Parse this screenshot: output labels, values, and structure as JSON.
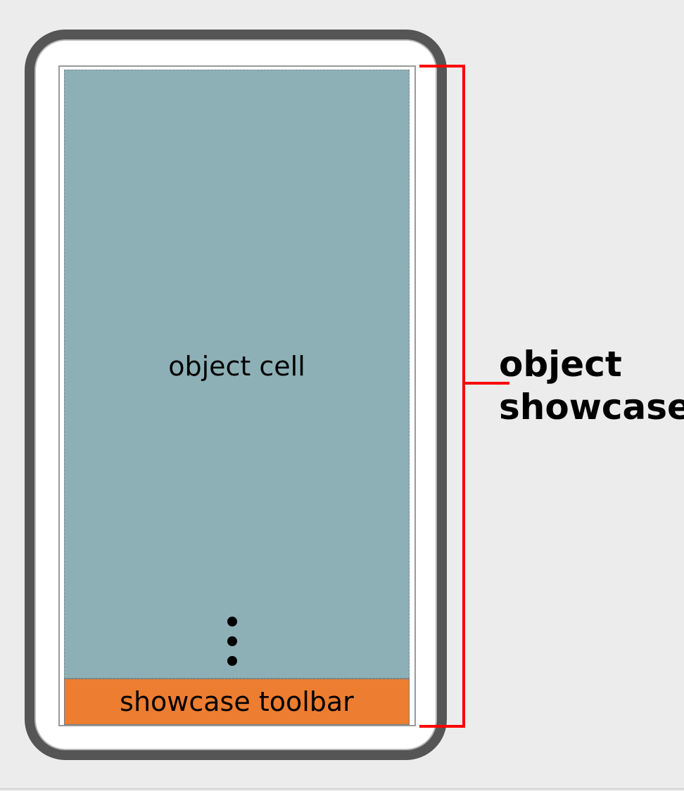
{
  "diagram": {
    "object_cell_label": "object cell",
    "toolbar_label": "showcase toolbar",
    "showcase_label_line1": "object",
    "showcase_label_line2": "showcase"
  },
  "colors": {
    "background": "#ececec",
    "device_frame": "#555555",
    "object_cell": "#8cb0b6",
    "toolbar": "#ed7d31",
    "bracket": "#ff0000"
  },
  "icons": {
    "continuation": "vertical-ellipsis-icon"
  }
}
